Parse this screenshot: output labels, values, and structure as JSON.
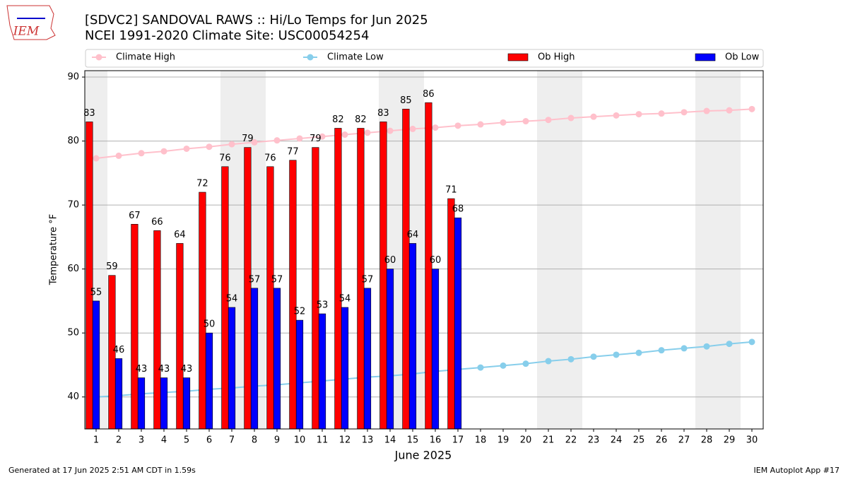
{
  "chart_data": {
    "type": "bar",
    "title": "[SDVC2] SANDOVAL RAWS :: Hi/Lo Temps for Jun 2025",
    "subtitle": "NCEI 1991-2020 Climate Site: USC00054254",
    "logo_text": "IEM",
    "x_label": "June 2025",
    "y_label": "Temperature °F",
    "x": [
      1,
      2,
      3,
      4,
      5,
      6,
      7,
      8,
      9,
      10,
      11,
      12,
      13,
      14,
      15,
      16,
      17,
      18,
      19,
      20,
      21,
      22,
      23,
      24,
      25,
      26,
      27,
      28,
      29,
      30
    ],
    "xlim": [
      0.5,
      30.5
    ],
    "xticks": [
      1,
      2,
      3,
      4,
      5,
      6,
      7,
      8,
      9,
      10,
      11,
      12,
      13,
      14,
      15,
      16,
      17,
      18,
      19,
      20,
      21,
      22,
      23,
      24,
      25,
      26,
      27,
      28,
      29,
      30
    ],
    "ylim": [
      35,
      91
    ],
    "yticks": [
      40,
      50,
      60,
      70,
      80,
      90
    ],
    "grid": true,
    "shaded_days": [
      1,
      7,
      8,
      14,
      15,
      21,
      22,
      28,
      29
    ],
    "shade_color": "#eeeeee",
    "series": [
      {
        "name": "Climate High",
        "type": "line",
        "color": "#ffc0cb",
        "values": [
          77.3,
          77.7,
          78.1,
          78.4,
          78.8,
          79.1,
          79.5,
          79.8,
          80.1,
          80.4,
          80.7,
          81.0,
          81.3,
          81.6,
          81.9,
          82.1,
          82.4,
          82.6,
          82.9,
          83.1,
          83.3,
          83.6,
          83.8,
          84.0,
          84.2,
          84.3,
          84.5,
          84.7,
          84.8,
          85.0
        ]
      },
      {
        "name": "Climate Low",
        "type": "line",
        "color": "#87ceeb",
        "values": [
          40.0,
          40.2,
          40.5,
          40.7,
          40.9,
          41.2,
          41.4,
          41.7,
          41.9,
          42.2,
          42.5,
          42.8,
          43.1,
          43.3,
          43.6,
          44.0,
          44.3,
          44.6,
          44.9,
          45.2,
          45.6,
          45.9,
          46.3,
          46.6,
          46.9,
          47.3,
          47.6,
          47.9,
          48.3,
          48.6
        ]
      },
      {
        "name": "Ob High",
        "type": "bar",
        "color": "#ff0000",
        "values": [
          83,
          59,
          67,
          66,
          64,
          72,
          76,
          79,
          76,
          77,
          79,
          82,
          82,
          83,
          85,
          86,
          71,
          null,
          null,
          null,
          null,
          null,
          null,
          null,
          null,
          null,
          null,
          null,
          null,
          null
        ]
      },
      {
        "name": "Ob Low",
        "type": "bar",
        "color": "#0000ff",
        "values": [
          55,
          46,
          43,
          43,
          43,
          50,
          54,
          57,
          57,
          52,
          53,
          54,
          57,
          60,
          64,
          60,
          68,
          null,
          null,
          null,
          null,
          null,
          null,
          null,
          null,
          null,
          null,
          null,
          null,
          null
        ]
      }
    ],
    "footer_left": "Generated at 17 Jun 2025 2:51 AM CDT in 1.59s",
    "footer_right": "IEM Autoplot App #17"
  }
}
